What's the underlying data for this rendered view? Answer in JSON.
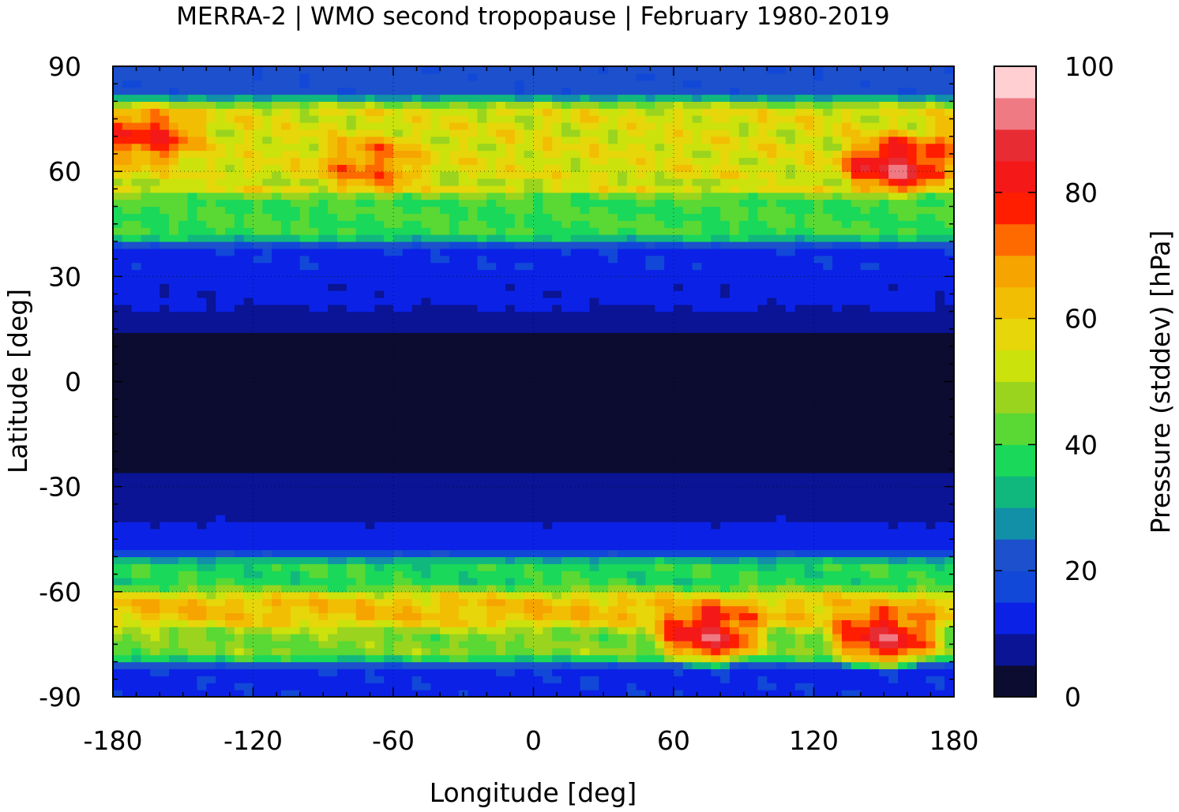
{
  "chart_data": {
    "type": "heatmap",
    "title": "MERRA-2 | WMO second tropopause | February 1980-2019",
    "xlabel": "Longitude [deg]",
    "ylabel": "Latitude [deg]",
    "xlim": [
      -180,
      180
    ],
    "ylim": [
      -90,
      90
    ],
    "x_ticks": [
      "-180",
      "-120",
      "-60",
      "0",
      "60",
      "120",
      "180"
    ],
    "y_ticks": [
      "90",
      "60",
      "30",
      "0",
      "-30",
      "-60",
      "-90"
    ],
    "grid": true,
    "colorbar": {
      "label": "Pressure (stddev) [hPa]",
      "range": [
        0,
        100
      ],
      "ticks": [
        "0",
        "20",
        "40",
        "60",
        "80",
        "100"
      ],
      "levels": 20,
      "colors": [
        "#0c0c30",
        "#0a1494",
        "#0b22e6",
        "#1248d8",
        "#1c50cc",
        "#1190a8",
        "#10b87e",
        "#1ad85a",
        "#5ad834",
        "#9ad41e",
        "#cbe20c",
        "#e6d60a",
        "#f2be04",
        "#f6a400",
        "#ff6a00",
        "#ff1e00",
        "#f41818",
        "#e82c34",
        "#f07a84",
        "#ffcfd2"
      ]
    },
    "field_description_bands": [
      {
        "lat_min": 80,
        "lat_max": 90,
        "value": 22
      },
      {
        "lat_min": 55,
        "lat_max": 80,
        "value": 55
      },
      {
        "lat_min": 40,
        "lat_max": 55,
        "value": 40
      },
      {
        "lat_min": 30,
        "lat_max": 40,
        "value": 14
      },
      {
        "lat_min": 20,
        "lat_max": 30,
        "value": 11
      },
      {
        "lat_min": 15,
        "lat_max": 20,
        "value": 7
      },
      {
        "lat_min": -25,
        "lat_max": 15,
        "value": 3
      },
      {
        "lat_min": -40,
        "lat_max": -25,
        "value": 8
      },
      {
        "lat_min": -50,
        "lat_max": -40,
        "value": 12
      },
      {
        "lat_min": -60,
        "lat_max": -50,
        "value": 38
      },
      {
        "lat_min": -70,
        "lat_max": -60,
        "value": 62
      },
      {
        "lat_min": -80,
        "lat_max": -70,
        "value": 45
      },
      {
        "lat_min": -90,
        "lat_max": -80,
        "value": 14
      }
    ],
    "field_hotspots": [
      {
        "lon": 155,
        "lat": 62,
        "value": 88
      },
      {
        "lon": -165,
        "lat": 70,
        "value": 78
      },
      {
        "lon": -70,
        "lat": 62,
        "value": 72
      },
      {
        "lon": 75,
        "lat": -72,
        "value": 85
      },
      {
        "lon": 150,
        "lat": -73,
        "value": 85
      }
    ]
  }
}
